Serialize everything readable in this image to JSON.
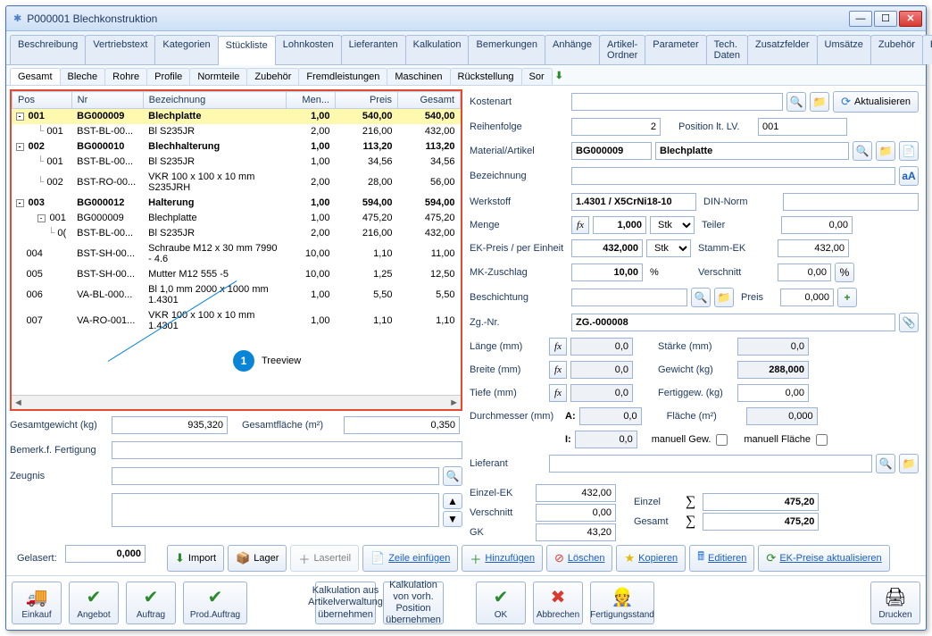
{
  "window": {
    "title": "P000001 Blechkonstruktion"
  },
  "tabs": [
    "Beschreibung",
    "Vertriebstext",
    "Kategorien",
    "Stückliste",
    "Lohnkosten",
    "Lieferanten",
    "Kalkulation",
    "Bemerkungen",
    "Anhänge",
    "Artikel-Ordner",
    "Parameter",
    "Tech. Daten",
    "Zusatzfelder",
    "Umsätze",
    "Zubehör",
    "Bilder",
    "VPE"
  ],
  "active_tab": 3,
  "subtabs": [
    "Gesamt",
    "Bleche",
    "Rohre",
    "Profile",
    "Normteile",
    "Zubehör",
    "Fremdleistungen",
    "Maschinen",
    "Rückstellung",
    "Sor"
  ],
  "active_subtab": 0,
  "table": {
    "headers": [
      "Pos",
      "Nr",
      "Bezeichnung",
      "Men...",
      "Preis",
      "Gesamt"
    ],
    "rows": [
      {
        "pos": "001",
        "nr": "BG000009",
        "bez": "Blechplatte",
        "men": "1,00",
        "preis": "540,00",
        "ges": "540,00",
        "bold": true,
        "sel": true,
        "exp": "-",
        "indent": 0
      },
      {
        "pos": "001",
        "nr": "BST-BL-00...",
        "bez": "Bl S235JR",
        "men": "2,00",
        "preis": "216,00",
        "ges": "432,00",
        "indent": 2,
        "conn": true
      },
      {
        "pos": "002",
        "nr": "BG000010",
        "bez": "Blechhalterung",
        "men": "1,00",
        "preis": "113,20",
        "ges": "113,20",
        "bold": true,
        "exp": "-",
        "indent": 0
      },
      {
        "pos": "001",
        "nr": "BST-BL-00...",
        "bez": "Bl S235JR",
        "men": "1,00",
        "preis": "34,56",
        "ges": "34,56",
        "indent": 2,
        "conn": true
      },
      {
        "pos": "002",
        "nr": "BST-RO-00...",
        "bez": "VKR 100 x 100 x 10 mm S235JRH",
        "men": "2,00",
        "preis": "28,00",
        "ges": "56,00",
        "indent": 2,
        "conn": true
      },
      {
        "pos": "003",
        "nr": "BG000012",
        "bez": "Halterung",
        "men": "1,00",
        "preis": "594,00",
        "ges": "594,00",
        "bold": true,
        "exp": "-",
        "indent": 0
      },
      {
        "pos": "001",
        "nr": "BG000009",
        "bez": "Blechplatte",
        "men": "1,00",
        "preis": "475,20",
        "ges": "475,20",
        "indent": 2,
        "exp": "-",
        "conn": true
      },
      {
        "pos": "0(",
        "nr": "BST-BL-00...",
        "bez": "Bl S235JR",
        "men": "2,00",
        "preis": "216,00",
        "ges": "432,00",
        "indent": 3,
        "conn": true
      },
      {
        "pos": "004",
        "nr": "BST-SH-00...",
        "bez": "Schraube M12 x 30 mm 7990 - 4.6",
        "men": "10,00",
        "preis": "1,10",
        "ges": "11,00",
        "indent": 1
      },
      {
        "pos": "005",
        "nr": "BST-SH-00...",
        "bez": "Mutter M12 555 -5",
        "men": "10,00",
        "preis": "1,25",
        "ges": "12,50",
        "indent": 1
      },
      {
        "pos": "006",
        "nr": "VA-BL-000...",
        "bez": "Bl 1,0 mm 2000 x 1000 mm 1.4301",
        "men": "1,00",
        "preis": "5,50",
        "ges": "5,50",
        "indent": 1
      },
      {
        "pos": "007",
        "nr": "VA-RO-001...",
        "bez": "VKR 100 x 100 x 10 mm 1.4301",
        "men": "1,00",
        "preis": "1,10",
        "ges": "1,10",
        "indent": 1
      }
    ]
  },
  "callout": {
    "num": "1",
    "label": "Treeview"
  },
  "leftfields": {
    "gesamtgewicht_label": "Gesamtgewicht (kg)",
    "gesamtgewicht": "935,320",
    "gesamtflaeche_label": "Gesamtfläche (m²)",
    "gesamtflaeche": "0,350",
    "bemerk_label": "Bemerk.f. Fertigung",
    "zeugnis_label": "Zeugnis",
    "gelasert_label": "Gelasert:",
    "gelasert": "0,000"
  },
  "right": {
    "kostenart": "Kostenart",
    "aktualisieren": "Aktualisieren",
    "reihenfolge": "Reihenfolge",
    "reihenfolge_val": "2",
    "positionlt": "Position lt. LV.",
    "positionlt_val": "001",
    "material": "Material/Artikel",
    "material_nr": "BG000009",
    "material_bez": "Blechplatte",
    "bezeichnung": "Bezeichnung",
    "werkstoff": "Werkstoff",
    "werkstoff_val": "1.4301 / X5CrNi18-10",
    "dinnorm": "DIN-Norm",
    "menge": "Menge",
    "menge_val": "1,000",
    "menge_unit": "Stk",
    "teiler": "Teiler",
    "teiler_val": "0,00",
    "ekpreis": "EK-Preis / per Einheit",
    "ekpreis_val": "432,000",
    "ekpreis_unit": "Stk",
    "stammek": "Stamm-EK",
    "stammek_val": "432,00",
    "mkzuschlag": "MK-Zuschlag",
    "mkzuschlag_val": "10,00",
    "mkzuschlag_unit": "%",
    "verschnitt": "Verschnitt",
    "verschnitt_val": "0,00",
    "verschnitt_unit": "%",
    "beschichtung": "Beschichtung",
    "preis": "Preis",
    "preis_val": "0,000",
    "zgnr": "Zg.-Nr.",
    "zgnr_val": "ZG.-000008",
    "laenge": "Länge (mm)",
    "laenge_val": "0,0",
    "staerke": "Stärke (mm)",
    "staerke_val": "0,0",
    "breite": "Breite (mm)",
    "breite_val": "0,0",
    "gewicht": "Gewicht (kg)",
    "gewicht_val": "288,000",
    "tiefe": "Tiefe (mm)",
    "tiefe_val": "0,0",
    "fertiggew": "Fertiggew. (kg)",
    "fertiggew_val": "0,00",
    "durchmesser": "Durchmesser (mm)",
    "durch_a": "A:",
    "durch_a_val": "0,0",
    "flaeche": "Fläche (m²)",
    "flaeche_val": "0,000",
    "durch_i": "I:",
    "durch_i_val": "0,0",
    "manuell_gew": "manuell Gew.",
    "manuell_fl": "manuell Fläche",
    "lieferant": "Lieferant",
    "einzelek": "Einzel-EK",
    "einzelek_val": "432,00",
    "verschnitt2": "Verschnitt",
    "verschnitt2_val": "0,00",
    "gk": "GK",
    "gk_val": "43,20",
    "einzel": "Einzel",
    "einzel_val": "475,20",
    "gesamt": "Gesamt",
    "gesamt_val": "475,20"
  },
  "actions": {
    "import": "Import",
    "lager": "Lager",
    "laserteil": "Laserteil",
    "zeile": "Zeile einfügen",
    "hinzu": "Hinzufügen",
    "loeschen": "Löschen",
    "kopieren": "Kopieren",
    "editieren": "Editieren",
    "ekakt": "EK-Preise aktualisieren"
  },
  "footer": {
    "einkauf": "Einkauf",
    "angebot": "Angebot",
    "auftrag": "Auftrag",
    "prodauftrag": "Prod.Auftrag",
    "kalk1": "Kalkulation aus Artikelverwaltung übernehmen",
    "kalk2": "Kalkulation von vorh. Position übernehmen",
    "ok": "OK",
    "abbrechen": "Abbrechen",
    "fertigungsstand": "Fertigungsstand",
    "drucken": "Drucken"
  }
}
